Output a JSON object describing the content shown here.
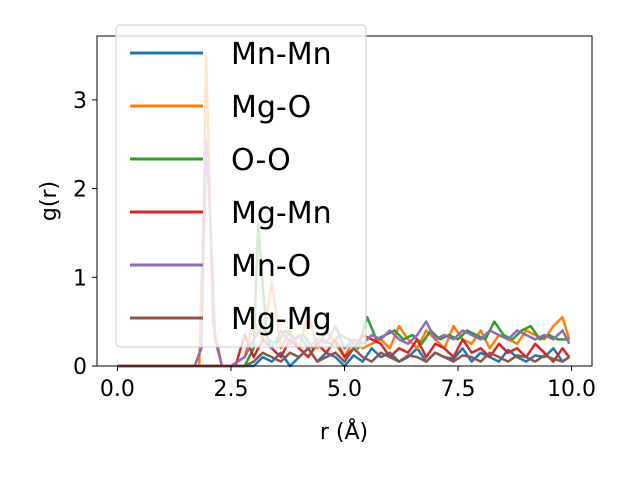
{
  "chart_data": {
    "type": "line",
    "xlabel": "r (Å)",
    "ylabel": "g(r)",
    "xlim": [
      -0.45,
      10.45
    ],
    "ylim": [
      0,
      3.72
    ],
    "xticks": [
      0.0,
      2.5,
      5.0,
      7.5,
      10.0
    ],
    "xtick_labels": [
      "0.0",
      "2.5",
      "5.0",
      "7.5",
      "10.0"
    ],
    "yticks": [
      0,
      1,
      2,
      3
    ],
    "ytick_labels": [
      "0",
      "1",
      "2",
      "3"
    ],
    "grid": false,
    "legend_position": "upper-left",
    "series": [
      {
        "name": "Mn-Mn",
        "color": "#1f77b4",
        "x": [
          0.0,
          1.0,
          2.0,
          2.8,
          3.0,
          3.2,
          3.4,
          3.6,
          3.8,
          4.0,
          4.2,
          4.4,
          4.6,
          4.8,
          5.0,
          5.2,
          5.4,
          5.6,
          5.8,
          6.0,
          6.2,
          6.4,
          6.6,
          6.8,
          7.0,
          7.2,
          7.4,
          7.6,
          7.8,
          8.0,
          8.2,
          8.4,
          8.6,
          8.8,
          9.0,
          9.2,
          9.4,
          9.6,
          9.8,
          9.95
        ],
        "y": [
          0,
          0,
          0,
          0,
          0,
          0.1,
          0.05,
          0.15,
          0.0,
          0.1,
          0.2,
          0.05,
          0.15,
          0.1,
          0.0,
          0.12,
          0.05,
          0.2,
          0.1,
          0.15,
          0.05,
          0.1,
          0.2,
          0.05,
          0.15,
          0.1,
          0.08,
          0.2,
          0.05,
          0.15,
          0.1,
          0.05,
          0.18,
          0.1,
          0.05,
          0.12,
          0.1,
          0.2,
          0.05,
          0.1
        ]
      },
      {
        "name": "Mg-O",
        "color": "#ff7f0e",
        "x": [
          0.0,
          1.5,
          1.8,
          1.9,
          1.95,
          2.0,
          2.1,
          2.3,
          2.5,
          2.8,
          3.0,
          3.2,
          3.4,
          3.6,
          3.8,
          4.0,
          4.2,
          4.4,
          4.6,
          4.8,
          5.0,
          5.2,
          5.4,
          5.6,
          5.8,
          6.0,
          6.2,
          6.4,
          6.6,
          6.8,
          7.0,
          7.2,
          7.4,
          7.6,
          7.8,
          8.0,
          8.2,
          8.4,
          8.6,
          8.8,
          9.0,
          9.2,
          9.4,
          9.6,
          9.8,
          9.95
        ],
        "y": [
          0,
          0,
          0,
          1.8,
          3.5,
          2.6,
          0.5,
          0.0,
          0.0,
          0.1,
          0.5,
          0.3,
          0.95,
          0.2,
          0.4,
          0.2,
          0.6,
          0.2,
          0.4,
          0.25,
          0.1,
          0.3,
          0.2,
          0.25,
          0.3,
          0.2,
          0.45,
          0.3,
          0.2,
          0.4,
          0.3,
          0.2,
          0.45,
          0.3,
          0.25,
          0.4,
          0.2,
          0.35,
          0.3,
          0.25,
          0.4,
          0.35,
          0.3,
          0.45,
          0.55,
          0.3
        ]
      },
      {
        "name": "O-O",
        "color": "#2ca02c",
        "x": [
          0.0,
          2.8,
          3.0,
          3.1,
          3.2,
          3.3,
          3.5,
          3.7,
          3.9,
          4.1,
          4.3,
          4.5,
          4.7,
          4.9,
          5.1,
          5.3,
          5.5,
          5.7,
          5.9,
          6.1,
          6.3,
          6.5,
          6.7,
          6.9,
          7.1,
          7.3,
          7.5,
          7.7,
          7.9,
          8.1,
          8.3,
          8.5,
          8.7,
          8.9,
          9.1,
          9.3,
          9.5,
          9.7,
          9.95
        ],
        "y": [
          0,
          0,
          0.2,
          1.6,
          0.9,
          0.3,
          0.25,
          0.4,
          0.3,
          0.35,
          0.2,
          0.3,
          0.25,
          0.35,
          0.3,
          0.2,
          0.55,
          0.3,
          0.35,
          0.4,
          0.3,
          0.35,
          0.25,
          0.4,
          0.3,
          0.35,
          0.3,
          0.4,
          0.35,
          0.3,
          0.5,
          0.35,
          0.3,
          0.4,
          0.45,
          0.3,
          0.35,
          0.3,
          0.3
        ]
      },
      {
        "name": "Mg-Mn",
        "color": "#d62728",
        "x": [
          0.0,
          2.6,
          2.8,
          3.0,
          3.2,
          3.4,
          3.6,
          3.8,
          4.0,
          4.2,
          4.4,
          4.6,
          4.8,
          5.0,
          5.2,
          5.4,
          5.6,
          5.8,
          6.0,
          6.2,
          6.4,
          6.6,
          6.8,
          7.0,
          7.2,
          7.4,
          7.6,
          7.8,
          8.0,
          8.2,
          8.4,
          8.6,
          8.8,
          9.0,
          9.2,
          9.4,
          9.6,
          9.8,
          9.95
        ],
        "y": [
          0,
          0,
          0.35,
          0.1,
          0.3,
          0.2,
          0.1,
          0.3,
          0.2,
          0.1,
          0.25,
          0.15,
          0.3,
          0.1,
          0.2,
          0.35,
          0.3,
          0.25,
          0.1,
          0.2,
          0.15,
          0.3,
          0.1,
          0.25,
          0.2,
          0.1,
          0.3,
          0.15,
          0.2,
          0.1,
          0.25,
          0.15,
          0.2,
          0.1,
          0.25,
          0.15,
          0.05,
          0.2,
          0.1
        ]
      },
      {
        "name": "Mn-O",
        "color": "#9467bd",
        "x": [
          0.0,
          1.7,
          1.85,
          1.95,
          2.05,
          2.15,
          2.3,
          2.5,
          2.8,
          3.0,
          3.2,
          3.4,
          3.6,
          3.8,
          4.0,
          4.2,
          4.4,
          4.6,
          4.8,
          5.0,
          5.2,
          5.4,
          5.6,
          5.8,
          6.0,
          6.2,
          6.4,
          6.6,
          6.8,
          7.0,
          7.2,
          7.4,
          7.6,
          7.8,
          8.0,
          8.2,
          8.4,
          8.6,
          8.8,
          9.0,
          9.2,
          9.4,
          9.6,
          9.8,
          9.95
        ],
        "y": [
          0,
          0,
          0.2,
          2.55,
          1.6,
          0.3,
          0.0,
          0.0,
          0.1,
          0.3,
          0.45,
          0.2,
          0.4,
          0.25,
          0.35,
          0.2,
          0.3,
          0.25,
          0.45,
          0.2,
          0.3,
          0.25,
          0.35,
          0.3,
          0.4,
          0.3,
          0.25,
          0.35,
          0.5,
          0.3,
          0.35,
          0.3,
          0.4,
          0.35,
          0.3,
          0.4,
          0.35,
          0.3,
          0.4,
          0.35,
          0.3,
          0.35,
          0.3,
          0.4,
          0.25
        ]
      },
      {
        "name": "Mg-Mg",
        "color": "#8c564b",
        "x": [
          0.0,
          2.8,
          3.0,
          3.2,
          3.4,
          3.6,
          3.8,
          4.0,
          4.2,
          4.4,
          4.6,
          4.8,
          5.0,
          5.2,
          5.4,
          5.6,
          5.8,
          6.0,
          6.2,
          6.4,
          6.6,
          6.8,
          7.0,
          7.2,
          7.4,
          7.6,
          7.8,
          8.0,
          8.2,
          8.4,
          8.6,
          8.8,
          9.0,
          9.2,
          9.4,
          9.6,
          9.8,
          9.95
        ],
        "y": [
          0,
          0,
          0.05,
          0.15,
          0.1,
          0.05,
          0.15,
          0.1,
          0.2,
          0.05,
          0.1,
          0.15,
          0.05,
          0.2,
          0.1,
          0.05,
          0.15,
          0.1,
          0.05,
          0.12,
          0.1,
          0.05,
          0.15,
          0.1,
          0.05,
          0.12,
          0.1,
          0.05,
          0.15,
          0.1,
          0.05,
          0.12,
          0.1,
          0.05,
          0.12,
          0.08,
          0.05,
          0.1
        ]
      }
    ]
  }
}
